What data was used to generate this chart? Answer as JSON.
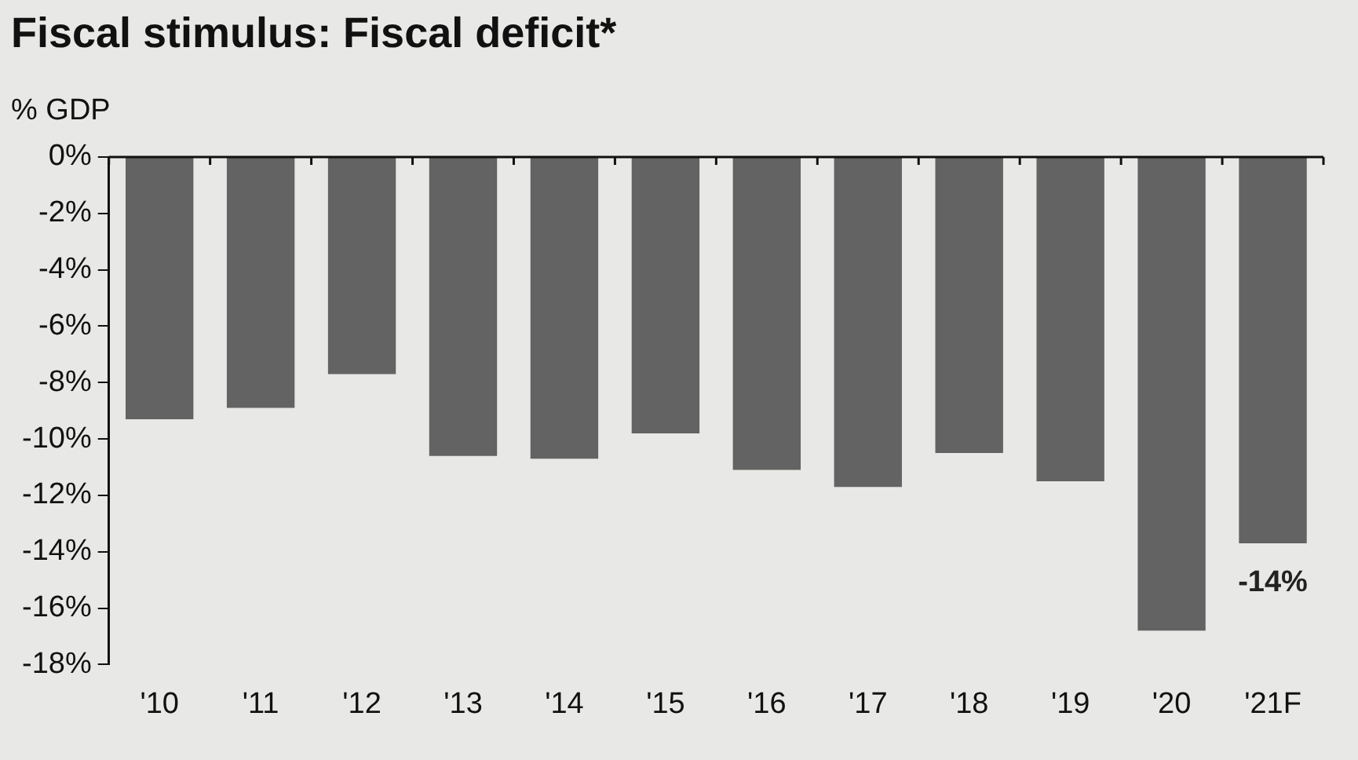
{
  "chart_data": {
    "type": "bar",
    "title": "Fiscal stimulus: Fiscal deficit*",
    "ylabel": "% GDP",
    "categories": [
      "'10",
      "'11",
      "'12",
      "'13",
      "'14",
      "'15",
      "'16",
      "'17",
      "'18",
      "'19",
      "'20",
      "'21F"
    ],
    "values": [
      -9.3,
      -8.9,
      -7.7,
      -10.6,
      -10.7,
      -9.8,
      -11.1,
      -11.7,
      -10.5,
      -11.5,
      -16.8,
      -13.7
    ],
    "value_labels": [
      null,
      null,
      null,
      null,
      null,
      null,
      null,
      null,
      null,
      null,
      null,
      "-14%"
    ],
    "color": "#636363",
    "ylim": [
      -18,
      0
    ],
    "yticks": [
      {
        "value": 0,
        "label": "0%"
      },
      {
        "value": -2,
        "label": "-2%"
      },
      {
        "value": -4,
        "label": "-4%"
      },
      {
        "value": -6,
        "label": "-6%"
      },
      {
        "value": -8,
        "label": "-8%"
      },
      {
        "value": -10,
        "label": "-10%"
      },
      {
        "value": -12,
        "label": "-12%"
      },
      {
        "value": -14,
        "label": "-14%"
      },
      {
        "value": -16,
        "label": "-16%"
      },
      {
        "value": -18,
        "label": "-18%"
      }
    ],
    "grid": false,
    "legend": false
  }
}
